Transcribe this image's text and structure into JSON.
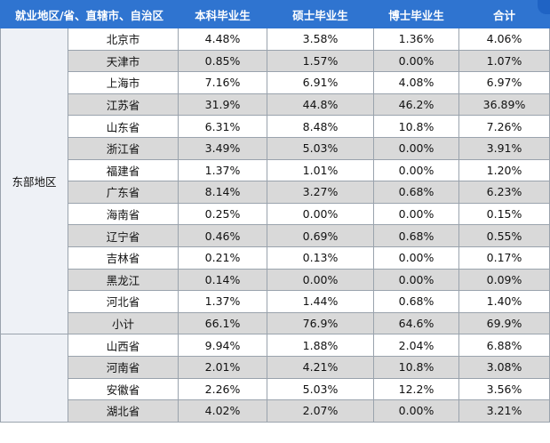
{
  "table": {
    "header": [
      "就业地区/省、直辖市、自治区",
      "本科毕业生",
      "硕士毕业生",
      "博士毕业生",
      "合计"
    ],
    "groups": [
      {
        "region": "东部地区",
        "rows": [
          [
            "北京市",
            "4.48%",
            "3.58%",
            "1.36%",
            "4.06%"
          ],
          [
            "天津市",
            "0.85%",
            "1.57%",
            "0.00%",
            "1.07%"
          ],
          [
            "上海市",
            "7.16%",
            "6.91%",
            "4.08%",
            "6.97%"
          ],
          [
            "江苏省",
            "31.9%",
            "44.8%",
            "46.2%",
            "36.89%"
          ],
          [
            "山东省",
            "6.31%",
            "8.48%",
            "10.8%",
            "7.26%"
          ],
          [
            "浙江省",
            "3.49%",
            "5.03%",
            "0.00%",
            "3.91%"
          ],
          [
            "福建省",
            "1.37%",
            "1.01%",
            "0.00%",
            "1.20%"
          ],
          [
            "广东省",
            "8.14%",
            "3.27%",
            "0.68%",
            "6.23%"
          ],
          [
            "海南省",
            "0.25%",
            "0.00%",
            "0.00%",
            "0.15%"
          ],
          [
            "辽宁省",
            "0.46%",
            "0.69%",
            "0.68%",
            "0.55%"
          ],
          [
            "吉林省",
            "0.21%",
            "0.13%",
            "0.00%",
            "0.17%"
          ],
          [
            "黑龙江",
            "0.14%",
            "0.00%",
            "0.00%",
            "0.09%"
          ],
          [
            "河北省",
            "1.37%",
            "1.44%",
            "0.68%",
            "1.40%"
          ],
          [
            "小计",
            "66.1%",
            "76.9%",
            "64.6%",
            "69.9%"
          ]
        ]
      },
      {
        "rows": [
          [
            "山西省",
            "9.94%",
            "1.88%",
            "2.04%",
            "6.88%"
          ],
          [
            "河南省",
            "2.01%",
            "4.21%",
            "10.8%",
            "3.08%"
          ],
          [
            "安徽省",
            "2.26%",
            "5.03%",
            "12.2%",
            "3.56%"
          ],
          [
            "湖北省",
            "4.02%",
            "2.07%",
            "0.00%",
            "3.21%"
          ]
        ]
      }
    ]
  }
}
